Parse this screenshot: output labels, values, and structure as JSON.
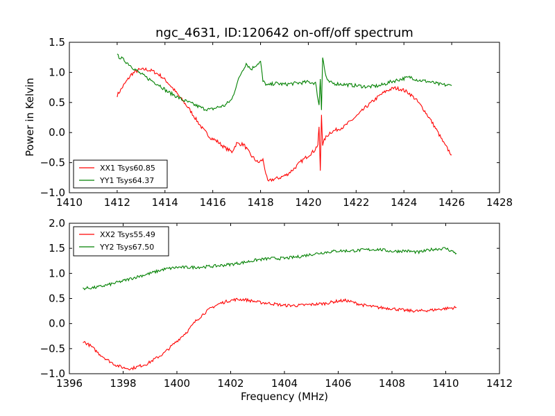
{
  "title": "ngc_4631, ID:120642 on-off/off spectrum",
  "xlabel_bottom": "Frequency (MHz)",
  "ylabel_top": "Power in Kelvin",
  "colors": {
    "xx": "#ff0000",
    "yy": "#008000",
    "axis": "#000000",
    "background": "#ffffff"
  },
  "chart_data": [
    {
      "type": "line",
      "xlim": [
        1410,
        1428
      ],
      "ylim": [
        -1.0,
        1.5
      ],
      "xticks": [
        "1410",
        "1412",
        "1414",
        "1416",
        "1418",
        "1420",
        "1422",
        "1424",
        "1426",
        "1428"
      ],
      "yticks": [
        "−1.0",
        "−0.5",
        "0.0",
        "0.5",
        "1.0",
        "1.5"
      ],
      "ylabel": "Power in Kelvin",
      "xlabel": "",
      "legend": {
        "placement": "bottom-left",
        "entries": [
          "XX1 Tsys60.85",
          "YY1 Tsys64.37"
        ]
      },
      "series": [
        {
          "name": "XX1 Tsys60.85",
          "color": "#ff0000",
          "x": [
            1412.0,
            1412.3,
            1412.6,
            1412.9,
            1413.2,
            1413.5,
            1413.8,
            1414.1,
            1414.4,
            1414.7,
            1415.0,
            1415.3,
            1415.6,
            1415.9,
            1416.2,
            1416.5,
            1416.8,
            1417.0,
            1417.3,
            1417.6,
            1417.9,
            1418.1,
            1418.3,
            1418.5,
            1418.8,
            1419.1,
            1419.4,
            1419.7,
            1420.0,
            1420.25,
            1420.4,
            1420.45,
            1420.5,
            1420.55,
            1420.6,
            1420.7,
            1420.9,
            1421.2,
            1421.5,
            1421.8,
            1422.1,
            1422.4,
            1422.7,
            1423.0,
            1423.3,
            1423.6,
            1423.9,
            1424.2,
            1424.5,
            1424.8,
            1425.1,
            1425.4,
            1425.7,
            1426.0
          ],
          "y": [
            0.62,
            0.8,
            0.97,
            1.04,
            1.05,
            1.02,
            0.95,
            0.84,
            0.7,
            0.55,
            0.4,
            0.22,
            0.05,
            -0.08,
            -0.15,
            -0.25,
            -0.32,
            -0.18,
            -0.2,
            -0.38,
            -0.5,
            -0.45,
            -0.82,
            -0.78,
            -0.75,
            -0.7,
            -0.6,
            -0.48,
            -0.38,
            -0.3,
            -0.2,
            0.1,
            -0.65,
            0.3,
            -0.2,
            -0.1,
            0.0,
            0.05,
            0.1,
            0.2,
            0.3,
            0.42,
            0.52,
            0.62,
            0.7,
            0.74,
            0.72,
            0.66,
            0.55,
            0.4,
            0.22,
            0.02,
            -0.2,
            -0.37
          ]
        },
        {
          "name": "YY1 Tsys64.37",
          "color": "#008000",
          "x": [
            1412.0,
            1412.3,
            1412.6,
            1412.9,
            1413.2,
            1413.5,
            1413.8,
            1414.1,
            1414.4,
            1414.7,
            1415.0,
            1415.3,
            1415.6,
            1415.9,
            1416.2,
            1416.5,
            1416.8,
            1417.0,
            1417.2,
            1417.4,
            1417.6,
            1417.8,
            1418.0,
            1418.1,
            1418.3,
            1418.6,
            1419.0,
            1419.5,
            1420.0,
            1420.3,
            1420.45,
            1420.5,
            1420.55,
            1420.6,
            1420.7,
            1420.8,
            1421.0,
            1421.5,
            1422.0,
            1422.5,
            1423.0,
            1423.5,
            1424.0,
            1424.3,
            1424.6,
            1425.0,
            1425.5,
            1426.0
          ],
          "y": [
            1.28,
            1.2,
            1.1,
            1.0,
            0.92,
            0.85,
            0.78,
            0.68,
            0.62,
            0.55,
            0.5,
            0.45,
            0.4,
            0.38,
            0.42,
            0.45,
            0.55,
            0.8,
            1.0,
            1.15,
            1.05,
            1.12,
            1.18,
            0.85,
            0.78,
            0.82,
            0.8,
            0.82,
            0.84,
            0.82,
            0.45,
            0.9,
            0.4,
            1.25,
            1.0,
            0.85,
            0.82,
            0.8,
            0.78,
            0.76,
            0.78,
            0.85,
            0.9,
            0.92,
            0.87,
            0.85,
            0.8,
            0.78
          ]
        }
      ]
    },
    {
      "type": "line",
      "xlim": [
        1396,
        1412
      ],
      "ylim": [
        -1.0,
        2.0
      ],
      "xticks": [
        "1396",
        "1398",
        "1400",
        "1402",
        "1404",
        "1406",
        "1408",
        "1410",
        "1412"
      ],
      "yticks": [
        "−1.0",
        "−0.5",
        "0.0",
        "0.5",
        "1.0",
        "1.5",
        "2.0"
      ],
      "xlabel": "Frequency (MHz)",
      "ylabel": "",
      "legend": {
        "placement": "top-left",
        "entries": [
          "XX2 Tsys55.49",
          "YY2 Tsys67.50"
        ]
      },
      "series": [
        {
          "name": "XX2 Tsys55.49",
          "color": "#ff0000",
          "x": [
            1396.5,
            1396.8,
            1397.1,
            1397.4,
            1397.7,
            1398.0,
            1398.3,
            1398.6,
            1398.9,
            1399.2,
            1399.5,
            1399.8,
            1400.1,
            1400.4,
            1400.7,
            1401.0,
            1401.3,
            1401.6,
            1401.9,
            1402.2,
            1402.5,
            1402.8,
            1403.1,
            1403.5,
            1404.0,
            1404.5,
            1405.0,
            1405.5,
            1406.0,
            1406.3,
            1406.7,
            1407.0,
            1407.5,
            1408.0,
            1408.5,
            1409.0,
            1409.5,
            1410.0,
            1410.4
          ],
          "y": [
            -0.35,
            -0.45,
            -0.6,
            -0.72,
            -0.82,
            -0.88,
            -0.9,
            -0.85,
            -0.8,
            -0.7,
            -0.6,
            -0.45,
            -0.3,
            -0.15,
            0.05,
            0.2,
            0.32,
            0.4,
            0.45,
            0.48,
            0.48,
            0.45,
            0.42,
            0.4,
            0.36,
            0.36,
            0.38,
            0.4,
            0.45,
            0.46,
            0.4,
            0.36,
            0.32,
            0.3,
            0.26,
            0.25,
            0.27,
            0.3,
            0.32
          ]
        },
        {
          "name": "YY2 Tsys67.50",
          "color": "#008000",
          "x": [
            1396.5,
            1397.0,
            1397.5,
            1398.0,
            1398.5,
            1399.0,
            1399.5,
            1400.0,
            1400.5,
            1401.0,
            1401.5,
            1402.0,
            1402.5,
            1403.0,
            1403.5,
            1404.0,
            1404.5,
            1405.0,
            1405.5,
            1406.0,
            1406.5,
            1407.0,
            1407.5,
            1408.0,
            1408.5,
            1409.0,
            1409.5,
            1410.0,
            1410.4
          ],
          "y": [
            0.7,
            0.72,
            0.78,
            0.85,
            0.93,
            1.0,
            1.08,
            1.12,
            1.12,
            1.13,
            1.15,
            1.18,
            1.22,
            1.27,
            1.3,
            1.3,
            1.33,
            1.38,
            1.42,
            1.45,
            1.45,
            1.47,
            1.48,
            1.44,
            1.45,
            1.42,
            1.48,
            1.5,
            1.4
          ]
        }
      ]
    }
  ]
}
